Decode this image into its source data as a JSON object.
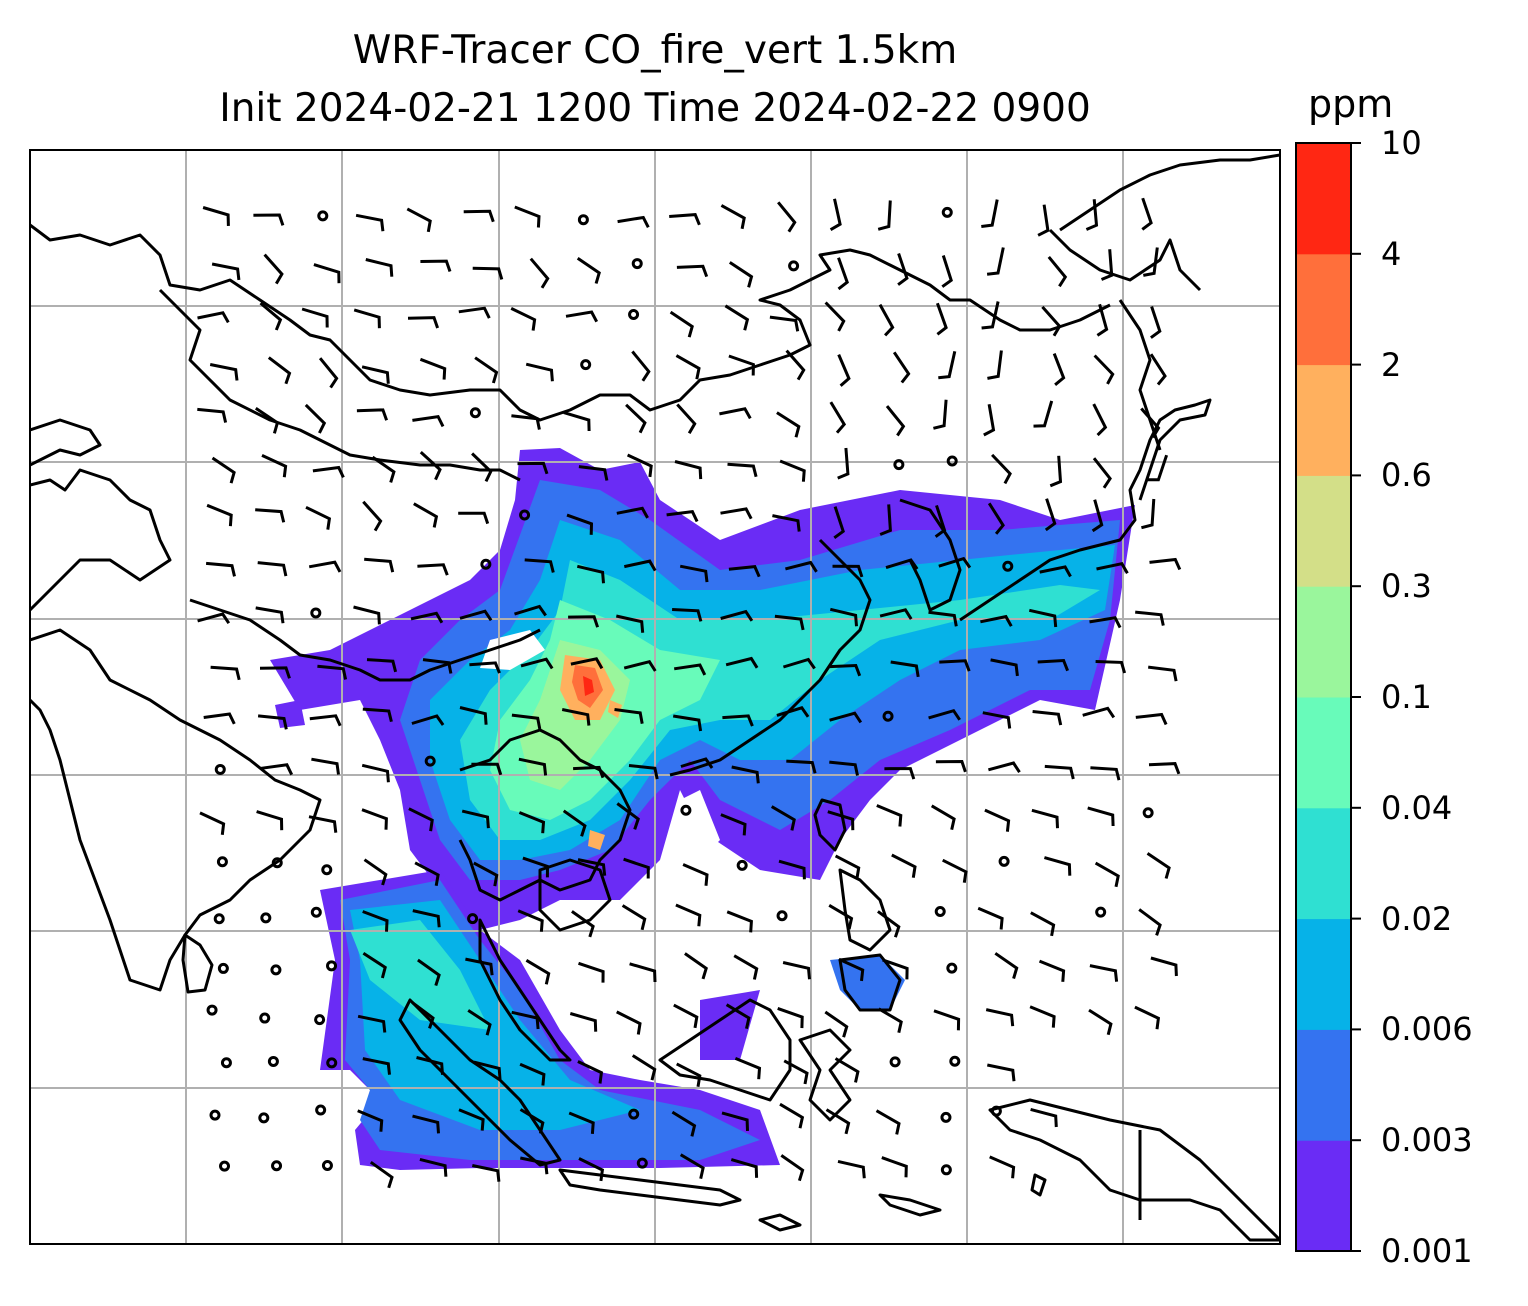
{
  "title": {
    "line1": "WRF-Tracer CO_fire_vert 1.5km",
    "line2": "Init 2024-02-21 1200 Time 2024-02-22 0900"
  },
  "colorbar": {
    "unit": "ppm",
    "levels": [
      "0.001",
      "0.003",
      "0.006",
      "0.02",
      "0.04",
      "0.1",
      "0.3",
      "0.6",
      "2",
      "4",
      "10"
    ],
    "colors": [
      "#6a2cf5",
      "#3473f0",
      "#06b2e8",
      "#2fe0d2",
      "#68fbba",
      "#9af69c",
      "#d3df88",
      "#ffb05e",
      "#ff6f3b",
      "#ff2713"
    ]
  },
  "map": {
    "gridline_color": "#b0b0b0",
    "coastline_color": "#000000",
    "field": "CO_fire_vert",
    "level": "1.5km",
    "gridlines": true
  }
}
